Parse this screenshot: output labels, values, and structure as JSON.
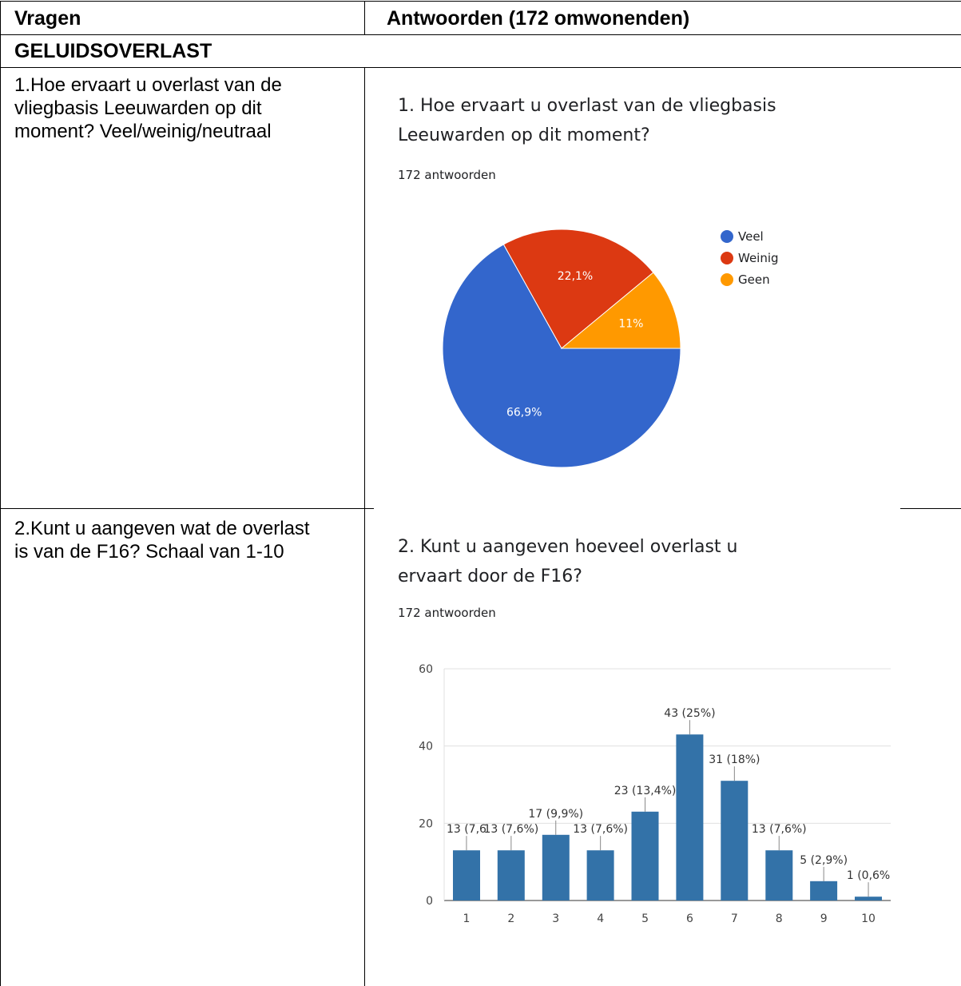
{
  "table": {
    "header_questions": "Vragen",
    "header_answers": "Antwoorden (172 omwonenden)",
    "section_title": "GELUIDSOVERLAST"
  },
  "rows": [
    {
      "question_lines": [
        "1.Hoe ervaart u overlast van de",
        "vliegbasis Leeuwarden op dit",
        "moment? Veel/weinig/neutraal"
      ]
    },
    {
      "question_lines": [
        "2.Kunt u aangeven wat de overlast",
        "is van de F16? Schaal van 1-10"
      ]
    }
  ],
  "charts": {
    "pie": {
      "title_lines": [
        "1. Hoe ervaart u overlast van de vliegbasis",
        "Leeuwarden op dit moment?"
      ],
      "responses": "172 antwoorden"
    },
    "bar": {
      "title_lines": [
        "2. Kunt u aangeven hoeveel overlast u",
        "ervaart door de F16?"
      ],
      "responses": "172 antwoorden"
    }
  },
  "chart_data": [
    {
      "type": "pie",
      "title": "1. Hoe ervaart u overlast van de vliegbasis Leeuwarden op dit moment?",
      "subtitle": "172 antwoorden",
      "legend_position": "right",
      "slices": [
        {
          "label": "Veel",
          "value": 66.9,
          "display": "66,9%",
          "color": "#3366cc"
        },
        {
          "label": "Weinig",
          "value": 22.1,
          "display": "22,1%",
          "color": "#dc3912"
        },
        {
          "label": "Geen",
          "value": 11.0,
          "display": "11%",
          "color": "#ff9900"
        }
      ]
    },
    {
      "type": "bar",
      "title": "2. Kunt u aangeven hoeveel overlast u ervaart door de F16?",
      "subtitle": "172 antwoorden",
      "categories": [
        "1",
        "2",
        "3",
        "4",
        "5",
        "6",
        "7",
        "8",
        "9",
        "10"
      ],
      "values": [
        13,
        13,
        17,
        13,
        23,
        43,
        31,
        13,
        5,
        1
      ],
      "data_labels": [
        "13 (7,6",
        "13 (7,6%)",
        "17 (9,9%)",
        "13 (7,6%)",
        "23 (13,4%)",
        "43 (25%)",
        "31 (18%)",
        "13 (7,6%)",
        "5 (2,9%)",
        "1 (0,6%"
      ],
      "ylim": [
        0,
        60
      ],
      "yticks": [
        "0",
        "20",
        "40",
        "60"
      ],
      "grid": true,
      "bar_color": "#3372a8"
    }
  ]
}
